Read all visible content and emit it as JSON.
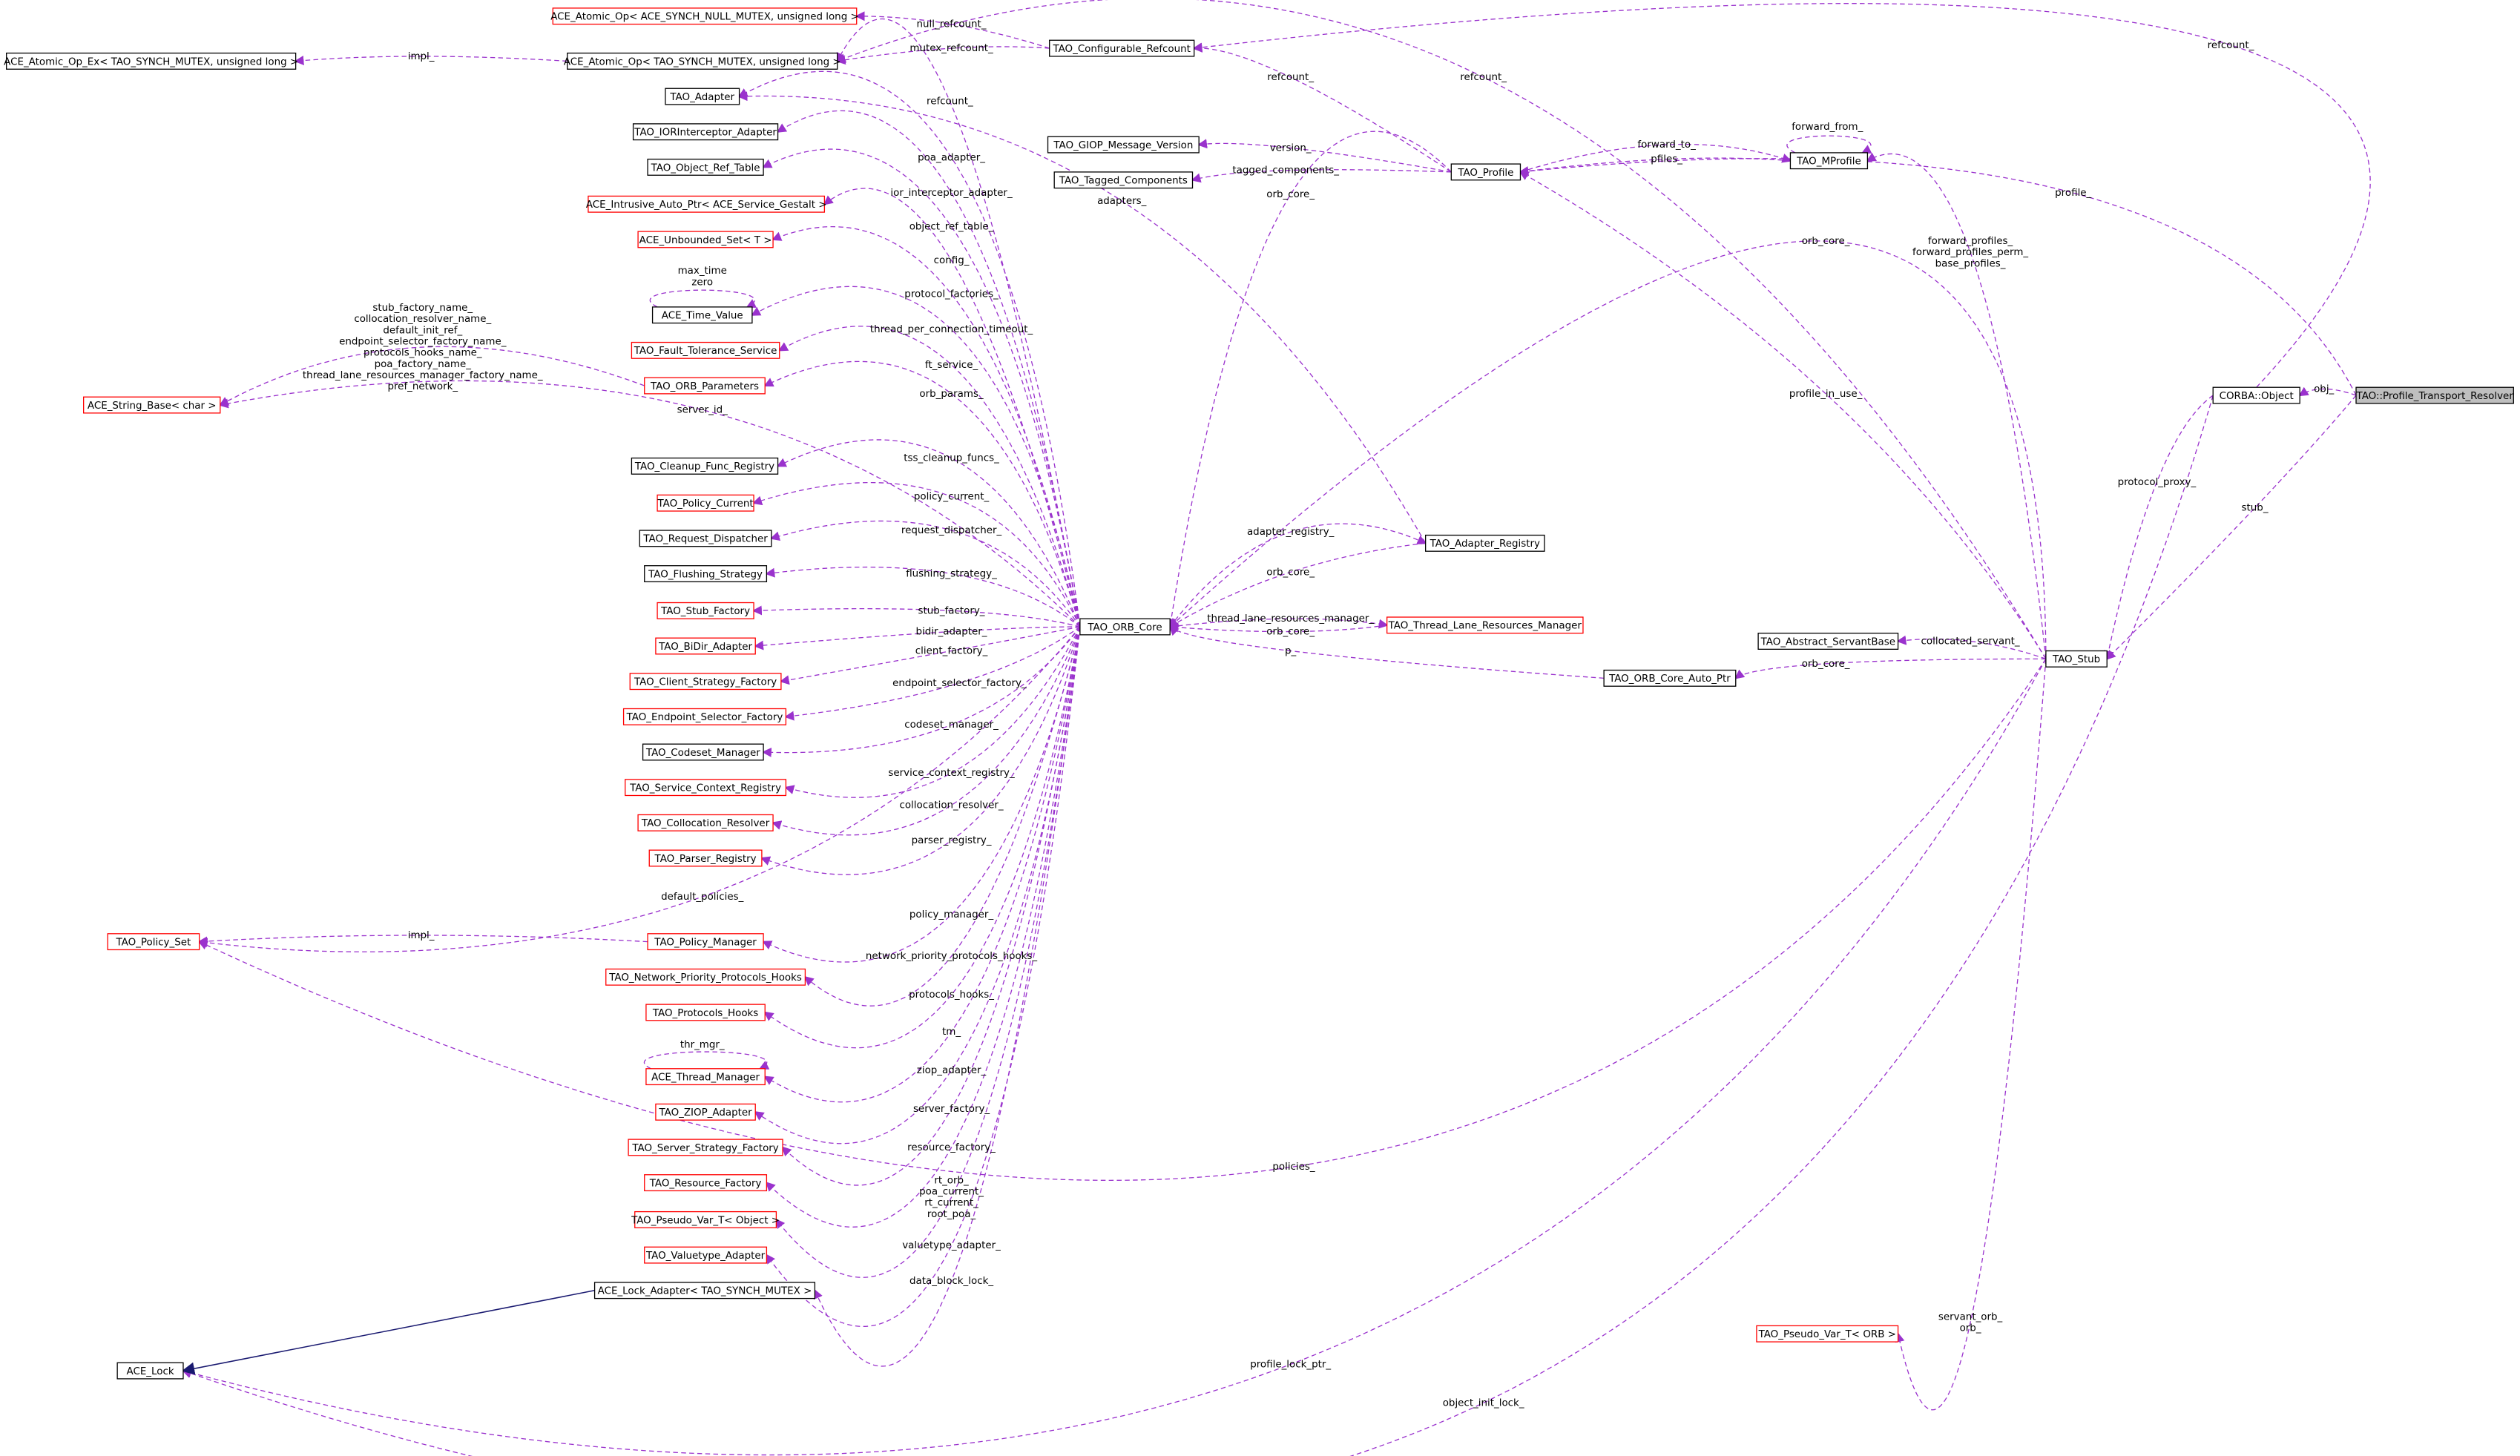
{
  "nodes": [
    {
      "label": "ACE_Atomic_Op< ACE_SYNCH_NULL_MUTEX, unsigned long >"
    },
    {
      "label": "ACE_Atomic_Op_Ex< TAO_SYNCH_MUTEX, unsigned long >"
    },
    {
      "label": "ACE_Atomic_Op< TAO_SYNCH_MUTEX, unsigned long >"
    },
    {
      "label": "TAO_Configurable_Refcount"
    },
    {
      "label": "TAO_Adapter"
    },
    {
      "label": "TAO_IORInterceptor_Adapter"
    },
    {
      "label": "TAO_Object_Ref_Table"
    },
    {
      "label": "ACE_Intrusive_Auto_Ptr< ACE_Service_Gestalt >"
    },
    {
      "label": "ACE_Unbounded_Set< T >"
    },
    {
      "label": "ACE_Time_Value"
    },
    {
      "label": "TAO_Fault_Tolerance_Service"
    },
    {
      "label": "TAO_ORB_Parameters"
    },
    {
      "label": "ACE_String_Base< char >"
    },
    {
      "label": "TAO_Cleanup_Func_Registry"
    },
    {
      "label": "TAO_Policy_Current"
    },
    {
      "label": "TAO_Request_Dispatcher"
    },
    {
      "label": "TAO_Flushing_Strategy"
    },
    {
      "label": "TAO_Stub_Factory"
    },
    {
      "label": "TAO_BiDir_Adapter"
    },
    {
      "label": "TAO_Client_Strategy_Factory"
    },
    {
      "label": "TAO_Endpoint_Selector_Factory"
    },
    {
      "label": "TAO_Codeset_Manager"
    },
    {
      "label": "TAO_Service_Context_Registry"
    },
    {
      "label": "TAO_Collocation_Resolver"
    },
    {
      "label": "TAO_Parser_Registry"
    },
    {
      "label": "TAO_Policy_Set"
    },
    {
      "label": "TAO_Policy_Manager"
    },
    {
      "label": "TAO_Network_Priority_Protocols_Hooks"
    },
    {
      "label": "TAO_Protocols_Hooks"
    },
    {
      "label": "ACE_Thread_Manager"
    },
    {
      "label": "TAO_ZIOP_Adapter"
    },
    {
      "label": "TAO_Server_Strategy_Factory"
    },
    {
      "label": "TAO_Resource_Factory"
    },
    {
      "label": "TAO_Pseudo_Var_T< Object >"
    },
    {
      "label": "TAO_Valuetype_Adapter"
    },
    {
      "label": "ACE_Lock_Adapter< TAO_SYNCH_MUTEX >"
    },
    {
      "label": "ACE_Lock"
    },
    {
      "label": "TAO_GIOP_Message_Version"
    },
    {
      "label": "TAO_Tagged_Components"
    },
    {
      "label": "TAO_Profile"
    },
    {
      "label": "TAO_MProfile"
    },
    {
      "label": "TAO_ORB_Core"
    },
    {
      "label": "TAO_Adapter_Registry"
    },
    {
      "label": "TAO_Thread_Lane_Resources_Manager"
    },
    {
      "label": "TAO_ORB_Core_Auto_Ptr"
    },
    {
      "label": "TAO_Abstract_ServantBase"
    },
    {
      "label": "TAO_Stub"
    },
    {
      "label": "CORBA::Object"
    },
    {
      "label": "TAO::Profile_Transport_Resolver"
    },
    {
      "label": "TAO_Pseudo_Var_T< ORB >"
    }
  ],
  "edges": [
    {
      "label": [
        "null_refcount_"
      ]
    },
    {
      "label": [
        "mutex_refcount_"
      ]
    },
    {
      "label": [
        "impl_"
      ]
    },
    {
      "label": [
        "refcount_"
      ]
    },
    {
      "label": [
        "refcount_"
      ]
    },
    {
      "label": [
        "refcount_"
      ]
    },
    {
      "label": [
        "adapters_"
      ]
    },
    {
      "label": [
        "refcount_"
      ]
    },
    {
      "label": [
        "poa_adapter_"
      ]
    },
    {
      "label": [
        "ior_interceptor_adapter_"
      ]
    },
    {
      "label": [
        "object_ref_table_"
      ]
    },
    {
      "label": [
        "config_"
      ]
    },
    {
      "label": [
        "protocol_factories_"
      ]
    },
    {
      "label": [
        "thread_per_connection_timeout_"
      ]
    },
    {
      "label": [
        "max_time",
        "zero"
      ]
    },
    {
      "label": [
        "ft_service_"
      ]
    },
    {
      "label": [
        "orb_params_"
      ]
    },
    {
      "label": [
        "stub_factory_name_",
        "collocation_resolver_name_",
        "default_init_ref_",
        "endpoint_selector_factory_name_",
        "protocols_hooks_name_",
        "poa_factory_name_",
        "thread_lane_resources_manager_factory_name_",
        "pref_network_"
      ]
    },
    {
      "label": [
        "server_id_"
      ]
    },
    {
      "label": [
        "tss_cleanup_funcs_"
      ]
    },
    {
      "label": [
        "policy_current_"
      ]
    },
    {
      "label": [
        "request_dispatcher_"
      ]
    },
    {
      "label": [
        "flushing_strategy_"
      ]
    },
    {
      "label": [
        "stub_factory_"
      ]
    },
    {
      "label": [
        "bidir_adapter_"
      ]
    },
    {
      "label": [
        "client_factory_"
      ]
    },
    {
      "label": [
        "endpoint_selector_factory_"
      ]
    },
    {
      "label": [
        "codeset_manager_"
      ]
    },
    {
      "label": [
        "service_context_registry_"
      ]
    },
    {
      "label": [
        "collocation_resolver_"
      ]
    },
    {
      "label": [
        "parser_registry_"
      ]
    },
    {
      "label": [
        "default_policies_"
      ]
    },
    {
      "label": [
        "impl_"
      ]
    },
    {
      "label": [
        "policy_manager_"
      ]
    },
    {
      "label": [
        "network_priority_protocols_hooks_"
      ]
    },
    {
      "label": [
        "protocols_hooks_"
      ]
    },
    {
      "label": [
        "tm_"
      ]
    },
    {
      "label": [
        "thr_mgr_"
      ]
    },
    {
      "label": [
        "ziop_adapter_"
      ]
    },
    {
      "label": [
        "server_factory_"
      ]
    },
    {
      "label": [
        "resource_factory_"
      ]
    },
    {
      "label": [
        "rt_orb_",
        "poa_current_",
        "rt_current_",
        "root_poa_"
      ]
    },
    {
      "label": [
        "valuetype_adapter_"
      ]
    },
    {
      "label": [
        "data_block_lock_"
      ]
    },
    {
      "label": [
        "policies_"
      ]
    },
    {
      "label": [
        "profile_lock_ptr_"
      ]
    },
    {
      "label": [
        "object_init_lock_"
      ]
    },
    {
      "label": [
        "version_"
      ]
    },
    {
      "label": [
        "tagged_components_"
      ]
    },
    {
      "label": [
        "orb_core_"
      ]
    },
    {
      "label": [
        "forward_to_"
      ]
    },
    {
      "label": [
        "pfiles_"
      ]
    },
    {
      "label": [
        "forward_from_"
      ]
    },
    {
      "label": [
        "profile_"
      ]
    },
    {
      "label": [
        "forward_profiles_",
        "forward_profiles_perm_",
        "base_profiles_"
      ]
    },
    {
      "label": [
        "orb_core_"
      ]
    },
    {
      "label": [
        "adapter_registry_"
      ]
    },
    {
      "label": [
        "orb_core_"
      ]
    },
    {
      "label": [
        "thread_lane_resources_manager_"
      ]
    },
    {
      "label": [
        "orb_core_"
      ]
    },
    {
      "label": [
        "p_"
      ]
    },
    {
      "label": [
        "orb_core_"
      ]
    },
    {
      "label": [
        "collocated_servant_"
      ]
    },
    {
      "label": [
        "profile_in_use_"
      ]
    },
    {
      "label": [
        "protocol_proxy_"
      ]
    },
    {
      "label": [
        "stub_"
      ]
    },
    {
      "label": [
        "obj_"
      ]
    },
    {
      "label": [
        "servant_orb_",
        "orb_"
      ]
    },
    {}
  ]
}
